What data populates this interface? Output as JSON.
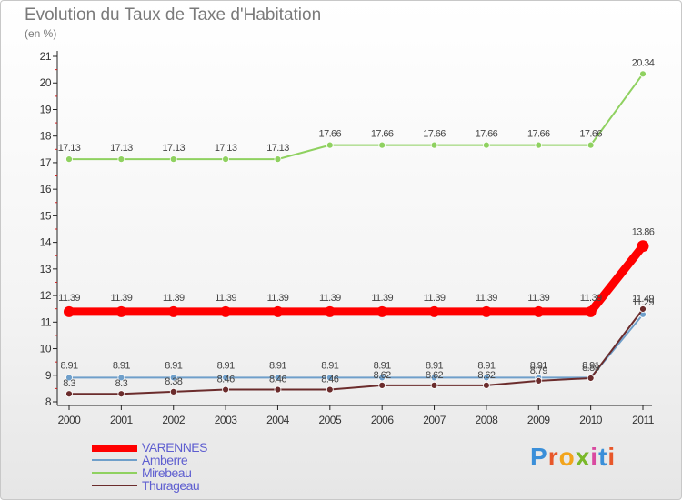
{
  "title": "Evolution du Taux de Taxe d'Habitation",
  "subtitle": "(en %)",
  "logo_text": "Proxiti",
  "chart_data": {
    "type": "line",
    "title": "Evolution du Taux de Taxe d'Habitation",
    "ylabel": "(en %)",
    "x": [
      "2000",
      "2001",
      "2002",
      "2003",
      "2004",
      "2005",
      "2006",
      "2007",
      "2008",
      "2009",
      "2010",
      "2011"
    ],
    "ylim": [
      8,
      21
    ],
    "yticks": [
      "8",
      "9",
      "10",
      "11",
      "12",
      "13",
      "14",
      "15",
      "16",
      "17",
      "18",
      "19",
      "20",
      "21"
    ],
    "series": [
      {
        "name": "VARENNES",
        "color": "#ff0000",
        "values": [
          11.39,
          11.39,
          11.39,
          11.39,
          11.39,
          11.39,
          11.39,
          11.39,
          11.39,
          11.39,
          11.39,
          13.86
        ],
        "labels": [
          "11.39",
          "11.39",
          "11.39",
          "11.39",
          "11.39",
          "11.39",
          "11.39",
          "11.39",
          "11.39",
          "11.39",
          "11.39",
          "13.86"
        ]
      },
      {
        "name": "Amberre",
        "color": "#6f9fca",
        "values": [
          8.91,
          8.91,
          8.91,
          8.91,
          8.91,
          8.91,
          8.91,
          8.91,
          8.91,
          8.91,
          8.91,
          11.29
        ],
        "labels": [
          "8.91",
          "8.91",
          "8.91",
          "8.91",
          "8.91",
          "8.91",
          "8.91",
          "8.91",
          "8.91",
          "8.91",
          "8.91",
          "11.29"
        ]
      },
      {
        "name": "Mirebeau",
        "color": "#8fd160",
        "values": [
          17.13,
          17.13,
          17.13,
          17.13,
          17.13,
          17.66,
          17.66,
          17.66,
          17.66,
          17.66,
          17.66,
          20.34
        ],
        "labels": [
          "17.13",
          "17.13",
          "17.13",
          "17.13",
          "17.13",
          "17.66",
          "17.66",
          "17.66",
          "17.66",
          "17.66",
          "17.66",
          "20.34"
        ]
      },
      {
        "name": "Thurageau",
        "color": "#6b2c2c",
        "values": [
          8.3,
          8.3,
          8.38,
          8.46,
          8.46,
          8.46,
          8.62,
          8.62,
          8.62,
          8.79,
          8.89,
          11.49
        ],
        "labels": [
          "8.3",
          "8.3",
          "8.38",
          "8.46",
          "8.46",
          "8.46",
          "8.62",
          "8.62",
          "8.62",
          "8.79",
          "8.89",
          "11.49"
        ]
      }
    ]
  }
}
